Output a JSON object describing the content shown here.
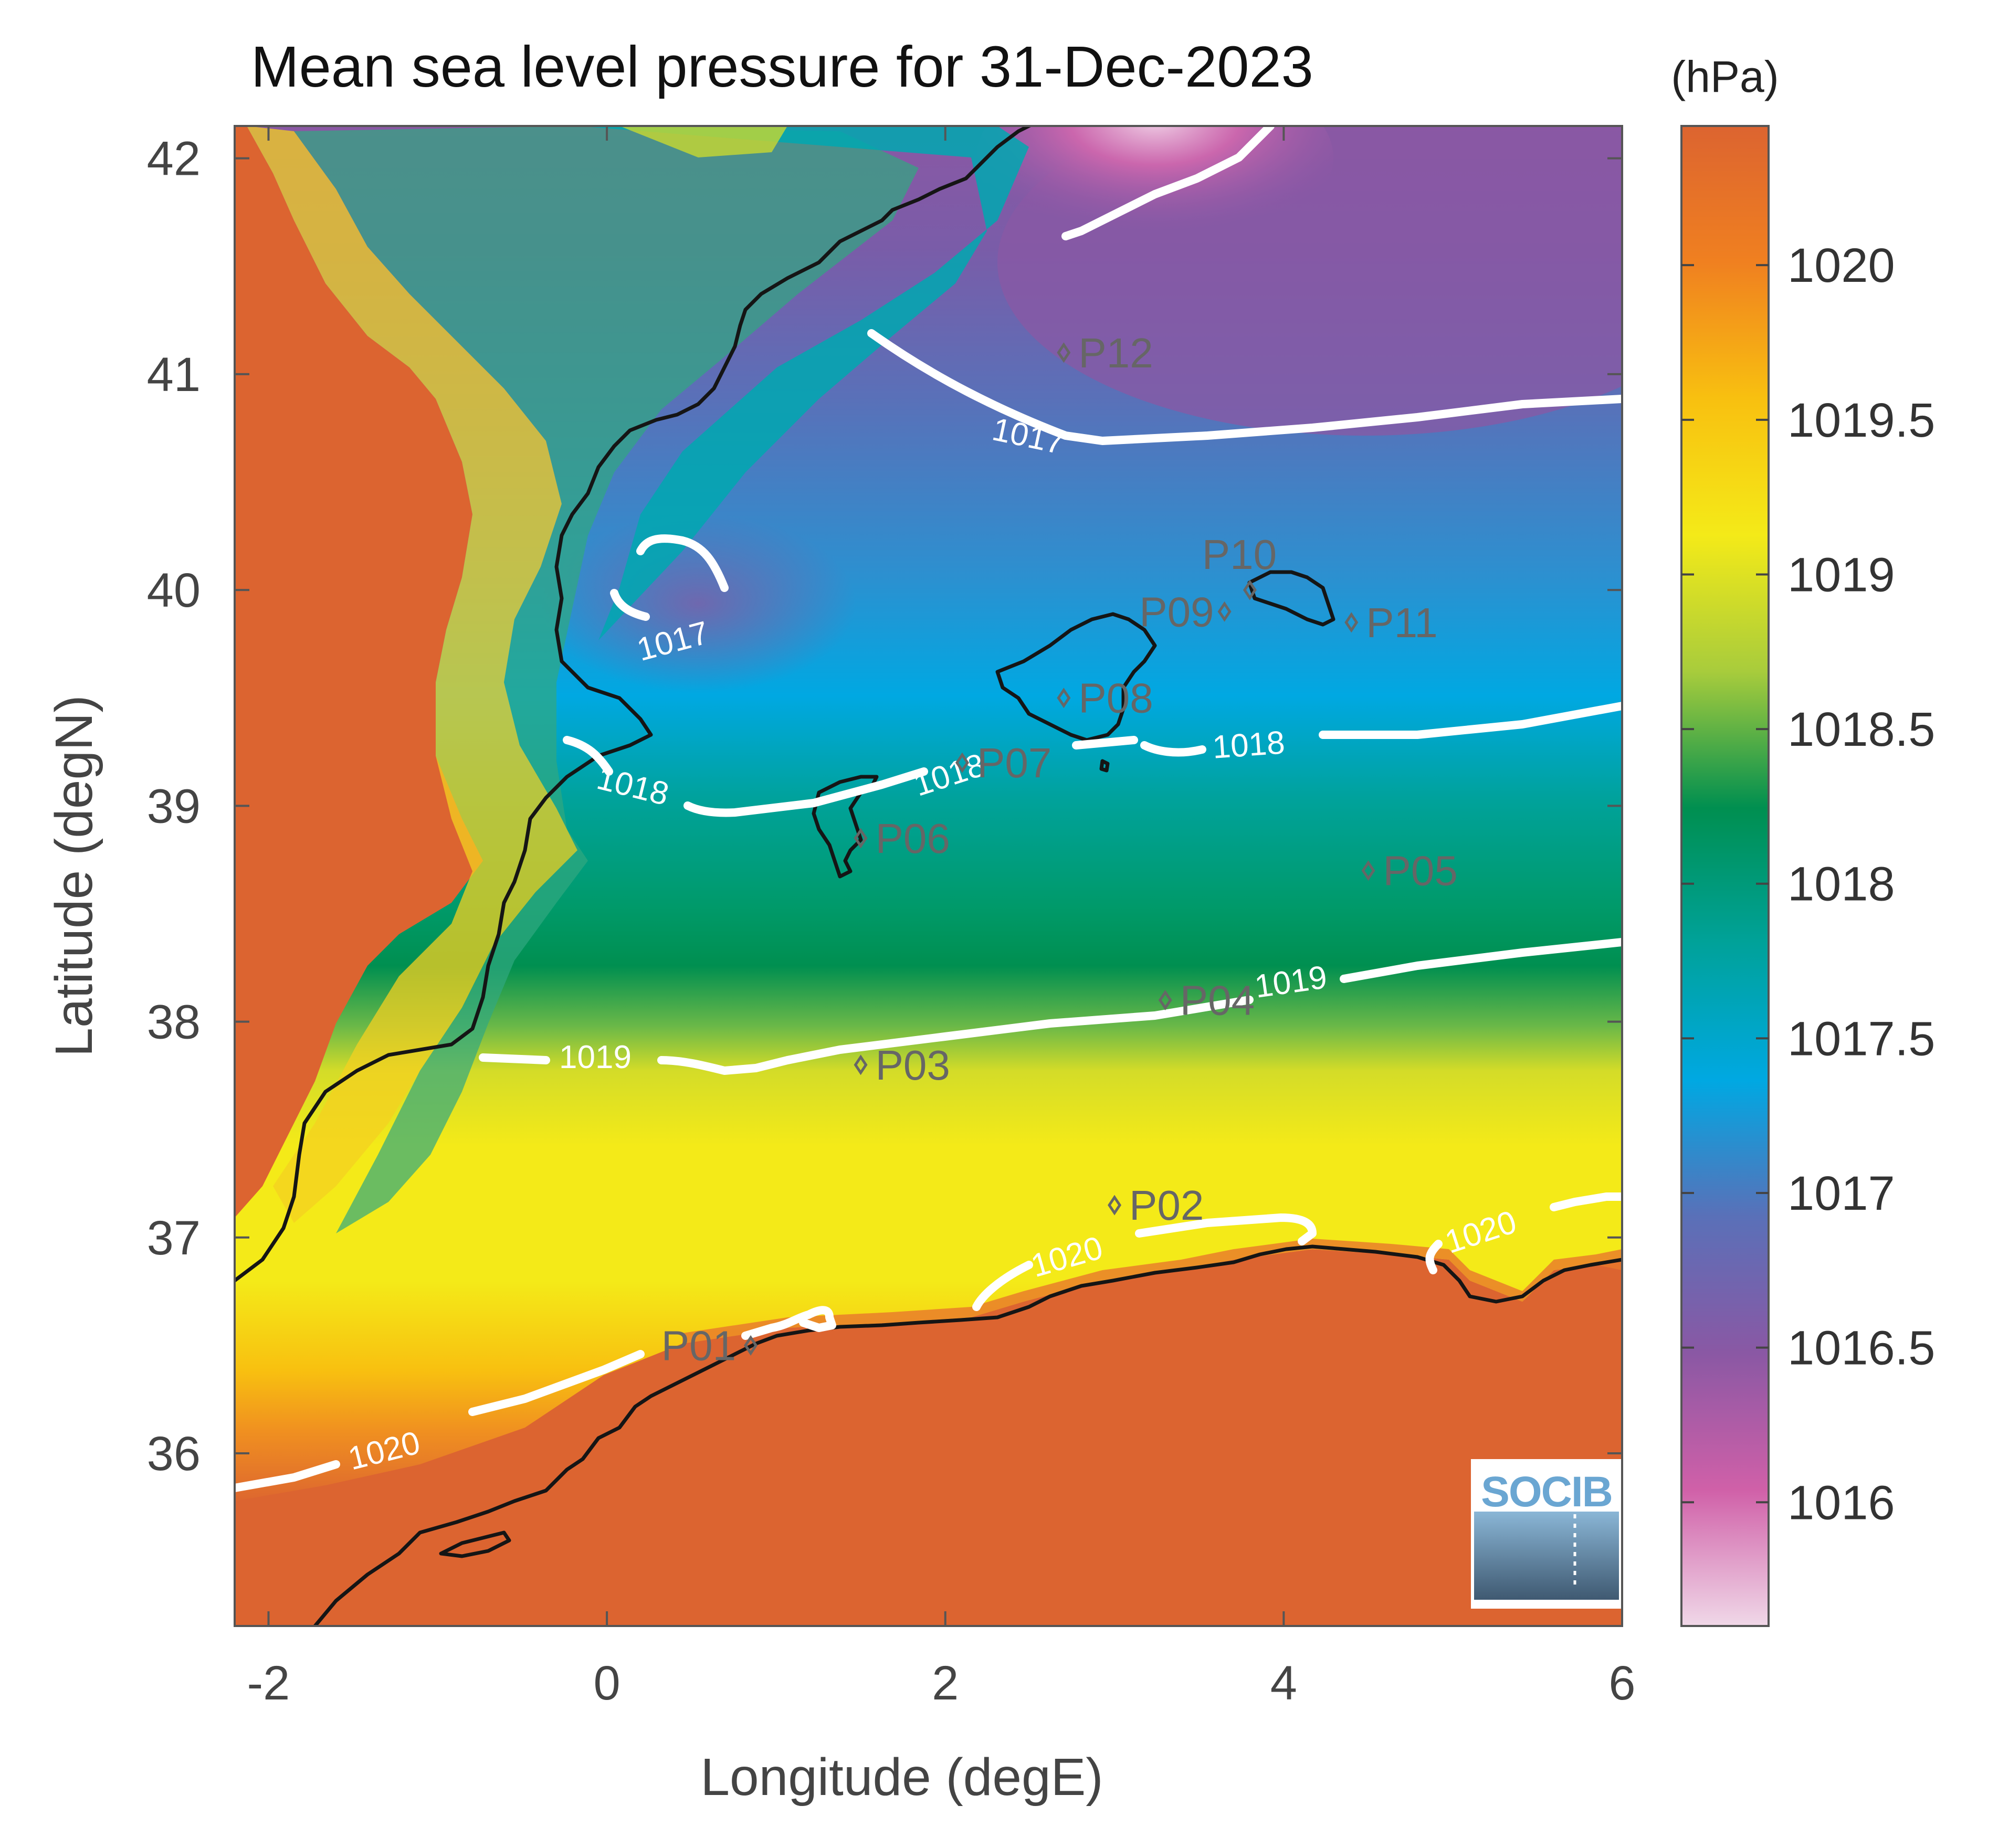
{
  "title": "Mean sea level pressure for 31-Dec-2023",
  "colorbar": {
    "unit": "(hPa)",
    "range": [
      1015.6,
      1020.45
    ],
    "ticks": [
      1016,
      1016.5,
      1017,
      1017.5,
      1018,
      1018.5,
      1019,
      1019.5,
      1020
    ],
    "tick_labels": [
      "1016",
      "1016.5",
      "1017",
      "1017.5",
      "1018",
      "1018.5",
      "1019",
      "1019.5",
      "1020"
    ],
    "colormap_colors": [
      "#f0d8e8",
      "#d060a8",
      "#8a58a4",
      "#5a70b8",
      "#00a8e2",
      "#00a29a",
      "#008f50",
      "#a8cc3c",
      "#f4ea18",
      "#f8c010",
      "#f08020",
      "#dc6430"
    ]
  },
  "chart_data": {
    "type": "heatmap",
    "xlabel": "Longitude (degE)",
    "ylabel": "Latitude (degN)",
    "xlim": [
      -2.2,
      6
    ],
    "ylim": [
      35.2,
      42.15
    ],
    "xticks": [
      -2,
      0,
      2,
      4,
      6
    ],
    "xtick_labels": [
      "-2",
      "0",
      "2",
      "4",
      "6"
    ],
    "yticks": [
      36,
      37,
      38,
      39,
      40,
      41,
      42
    ],
    "ytick_labels": [
      "36",
      "37",
      "38",
      "39",
      "40",
      "41",
      "42"
    ],
    "contour_levels": [
      1017,
      1018,
      1019,
      1020
    ],
    "contour_labels": [
      "1017",
      "1017",
      "1018",
      "1018",
      "1018",
      "1019",
      "1019",
      "1020",
      "1020",
      "1020"
    ],
    "stations": [
      {
        "name": "P01",
        "lon": 0.85,
        "lat": 36.5
      },
      {
        "name": "P02",
        "lon": 3.0,
        "lat": 37.15
      },
      {
        "name": "P03",
        "lon": 1.5,
        "lat": 37.8
      },
      {
        "name": "P04",
        "lon": 3.3,
        "lat": 38.1
      },
      {
        "name": "P05",
        "lon": 4.5,
        "lat": 38.7
      },
      {
        "name": "P06",
        "lon": 1.5,
        "lat": 38.85
      },
      {
        "name": "P07",
        "lon": 2.1,
        "lat": 39.2
      },
      {
        "name": "P08",
        "lon": 2.7,
        "lat": 39.5
      },
      {
        "name": "P09",
        "lon": 3.65,
        "lat": 39.9
      },
      {
        "name": "P10",
        "lon": 3.8,
        "lat": 40.0
      },
      {
        "name": "P11",
        "lon": 4.4,
        "lat": 39.85
      },
      {
        "name": "P12",
        "lon": 2.7,
        "lat": 41.1
      }
    ]
  },
  "logo": {
    "text": "SOCIB"
  }
}
